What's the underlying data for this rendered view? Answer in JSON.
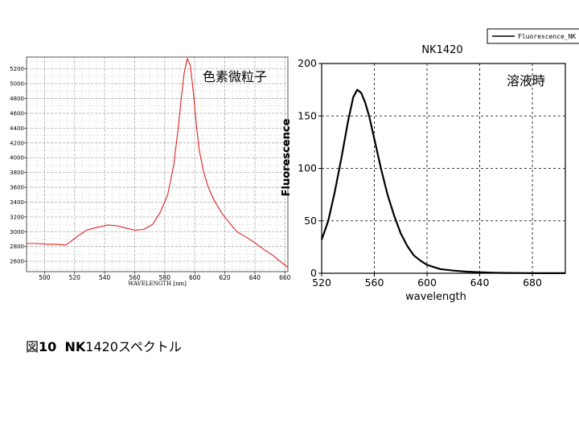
{
  "chart_data": [
    {
      "type": "line",
      "annotation": "色素微粒子",
      "xlabel": "WAVELENGTH [nm]",
      "ylabel": "",
      "xlim": [
        488,
        662
      ],
      "ylim": [
        2460,
        5360
      ],
      "x_ticks": [
        500,
        520,
        540,
        560,
        580,
        600,
        620,
        640,
        660
      ],
      "y_ticks": [
        2600,
        2800,
        3000,
        3200,
        3400,
        3600,
        3800,
        4000,
        4200,
        4400,
        4600,
        4800,
        5000,
        5200
      ],
      "grid": true,
      "line_color": "#e02020",
      "series": [
        {
          "x": [
            488,
            495,
            502,
            508,
            514,
            517,
            522,
            528,
            535,
            542,
            548,
            554,
            560,
            566,
            572,
            577,
            582,
            586,
            589,
            591,
            593,
            595,
            597,
            599,
            601,
            603,
            606,
            609,
            613,
            618,
            623,
            628,
            634,
            640,
            646,
            652,
            658,
            662
          ],
          "y": [
            2840,
            2840,
            2830,
            2830,
            2820,
            2860,
            2940,
            3020,
            3060,
            3090,
            3080,
            3050,
            3020,
            3030,
            3100,
            3260,
            3500,
            3900,
            4400,
            4800,
            5150,
            5340,
            5250,
            4900,
            4450,
            4100,
            3800,
            3600,
            3420,
            3250,
            3120,
            3000,
            2930,
            2850,
            2760,
            2680,
            2580,
            2520
          ]
        }
      ]
    },
    {
      "type": "line",
      "title": "NK1420",
      "annotation": "溶液時",
      "xlabel": "wavelength",
      "ylabel": "Fluorescence",
      "legend": "Fluorescence_NK",
      "legend_placement": "top-right",
      "xlim": [
        520,
        705
      ],
      "ylim": [
        0,
        200
      ],
      "x_ticks": [
        520,
        560,
        600,
        640,
        680
      ],
      "y_ticks": [
        0,
        50,
        100,
        150,
        200
      ],
      "grid": true,
      "line_color": "#000000",
      "series": [
        {
          "name": "Fluorescence_NK",
          "x": [
            520,
            525,
            530,
            535,
            540,
            544,
            547,
            550,
            553,
            556,
            560,
            565,
            570,
            575,
            580,
            585,
            590,
            595,
            600,
            605,
            610,
            620,
            630,
            640,
            650,
            660,
            670,
            680,
            690,
            705
          ],
          "y": [
            32,
            50,
            78,
            110,
            145,
            168,
            175,
            172,
            163,
            150,
            128,
            100,
            75,
            55,
            38,
            26,
            17,
            12,
            8,
            6,
            4,
            2.5,
            1.5,
            1,
            0.5,
            0.3,
            0.2,
            0.1,
            0.1,
            0.1
          ]
        }
      ]
    }
  ],
  "caption": {
    "prefix": "図",
    "number": "10",
    "name": "NK",
    "rest": "1420スペクトル"
  }
}
